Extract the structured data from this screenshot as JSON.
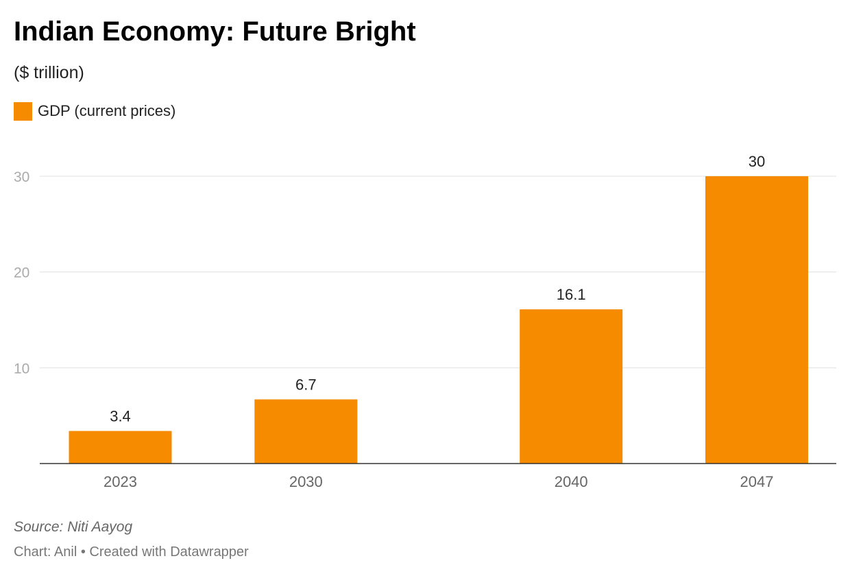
{
  "chart_data": {
    "type": "bar",
    "title": "Indian Economy: Future Bright",
    "subtitle": "($ trillion)",
    "legend_position": "top-left",
    "grid": true,
    "series": [
      {
        "name": "GDP (current prices)",
        "color": "#f78b00",
        "values": [
          3.4,
          6.7,
          16.1,
          30
        ]
      }
    ],
    "categories": [
      "2023",
      "2030",
      "2040",
      "2047"
    ],
    "x": [
      2023,
      2030,
      2040,
      2047
    ],
    "value_labels": [
      "3.4",
      "6.7",
      "16.1",
      "30"
    ],
    "yticks": [
      10,
      20,
      30
    ],
    "ytick_labels": [
      "10",
      "20",
      "30"
    ],
    "ylim": [
      0,
      30
    ],
    "xlabel": "",
    "ylabel": ""
  },
  "footer": {
    "source": "Source: Niti Aayog",
    "credit": "Chart: Anil • Created with Datawrapper"
  }
}
